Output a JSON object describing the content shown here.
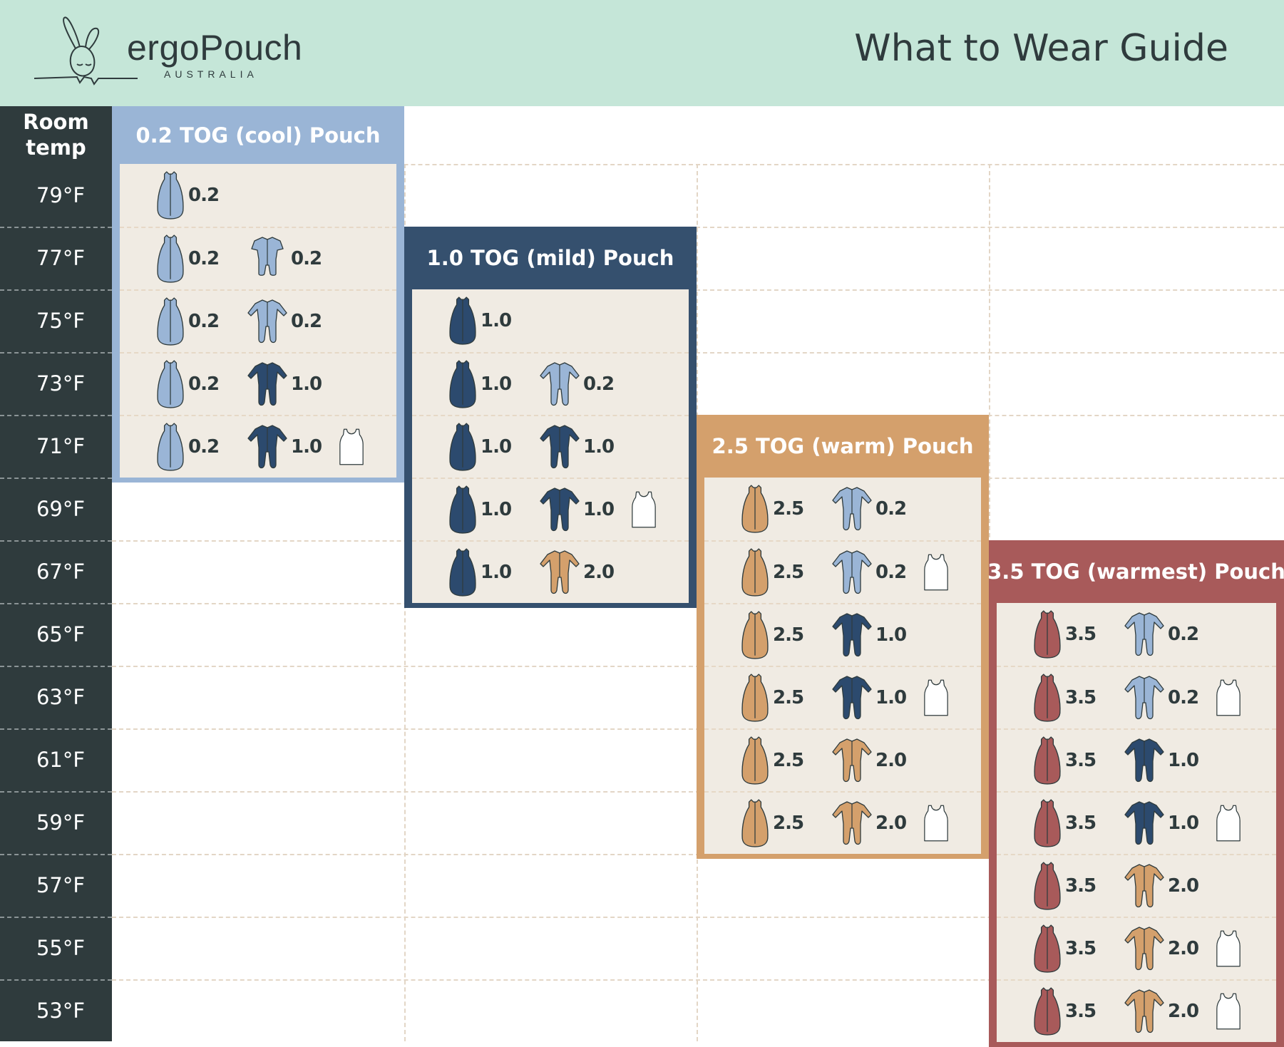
{
  "header": {
    "logo_name": "ergoPouch",
    "logo_sub": "AUSTRALIA",
    "title": "What to Wear Guide"
  },
  "colors": {
    "header_bg": "#c5e6d8",
    "left_col": "#2f3b3d",
    "content_bg": "#f0ebe3",
    "tog_0_2": "#9ab5d6",
    "tog_1_0": "#2c4a6e",
    "tog_2_0": "#d4a06c",
    "tog_2_5": "#d4a06c",
    "tog_3_5": "#a85a5a",
    "singlet": "#ffffff"
  },
  "room_temp_label": "Room temp",
  "temps": [
    "79°F",
    "77°F",
    "75°F",
    "73°F",
    "71°F",
    "69°F",
    "67°F",
    "65°F",
    "63°F",
    "61°F",
    "59°F",
    "57°F",
    "55°F",
    "53°F"
  ],
  "boxes": [
    {
      "title": "0.2 TOG (cool) Pouch",
      "color": "#9ab5d6",
      "rows": [
        {
          "temp": "79°F",
          "items": [
            {
              "icon": "pouch",
              "tog": "0.2"
            }
          ]
        },
        {
          "temp": "77°F",
          "items": [
            {
              "icon": "pouch",
              "tog": "0.2"
            },
            {
              "icon": "short-suit",
              "tog": "0.2"
            }
          ]
        },
        {
          "temp": "75°F",
          "items": [
            {
              "icon": "pouch",
              "tog": "0.2"
            },
            {
              "icon": "suit",
              "tog": "0.2"
            }
          ]
        },
        {
          "temp": "73°F",
          "items": [
            {
              "icon": "pouch",
              "tog": "0.2"
            },
            {
              "icon": "suit",
              "tog": "1.0"
            }
          ]
        },
        {
          "temp": "71°F",
          "items": [
            {
              "icon": "pouch",
              "tog": "0.2"
            },
            {
              "icon": "suit",
              "tog": "1.0"
            },
            {
              "icon": "singlet",
              "tog": ""
            }
          ]
        }
      ]
    },
    {
      "title": "1.0 TOG (mild) Pouch",
      "color": "#35506e",
      "rows": [
        {
          "temp": "75°F",
          "items": [
            {
              "icon": "pouch",
              "tog": "1.0"
            }
          ]
        },
        {
          "temp": "73°F",
          "items": [
            {
              "icon": "pouch",
              "tog": "1.0"
            },
            {
              "icon": "suit",
              "tog": "0.2"
            }
          ]
        },
        {
          "temp": "71°F",
          "items": [
            {
              "icon": "pouch",
              "tog": "1.0"
            },
            {
              "icon": "suit",
              "tog": "1.0"
            }
          ]
        },
        {
          "temp": "69°F",
          "items": [
            {
              "icon": "pouch",
              "tog": "1.0"
            },
            {
              "icon": "suit",
              "tog": "1.0"
            },
            {
              "icon": "singlet",
              "tog": ""
            }
          ]
        },
        {
          "temp": "67°F",
          "items": [
            {
              "icon": "pouch",
              "tog": "1.0"
            },
            {
              "icon": "suit",
              "tog": "2.0"
            }
          ]
        }
      ]
    },
    {
      "title": "2.5 TOG (warm) Pouch",
      "color": "#d4a06c",
      "rows": [
        {
          "temp": "69°F",
          "items": [
            {
              "icon": "pouch",
              "tog": "2.5"
            },
            {
              "icon": "suit",
              "tog": "0.2"
            }
          ]
        },
        {
          "temp": "67°F",
          "items": [
            {
              "icon": "pouch",
              "tog": "2.5"
            },
            {
              "icon": "suit",
              "tog": "0.2"
            },
            {
              "icon": "singlet",
              "tog": ""
            }
          ]
        },
        {
          "temp": "65°F",
          "items": [
            {
              "icon": "pouch",
              "tog": "2.5"
            },
            {
              "icon": "suit",
              "tog": "1.0"
            }
          ]
        },
        {
          "temp": "63°F",
          "items": [
            {
              "icon": "pouch",
              "tog": "2.5"
            },
            {
              "icon": "suit",
              "tog": "1.0"
            },
            {
              "icon": "singlet",
              "tog": ""
            }
          ]
        },
        {
          "temp": "61°F",
          "items": [
            {
              "icon": "pouch",
              "tog": "2.5"
            },
            {
              "icon": "suit",
              "tog": "2.0"
            }
          ]
        },
        {
          "temp": "59°F",
          "items": [
            {
              "icon": "pouch",
              "tog": "2.5"
            },
            {
              "icon": "suit",
              "tog": "2.0"
            },
            {
              "icon": "singlet",
              "tog": ""
            }
          ]
        }
      ]
    },
    {
      "title": "3.5 TOG (warmest) Pouch",
      "color": "#a85a5a",
      "rows": [
        {
          "temp": "65°F",
          "items": [
            {
              "icon": "pouch",
              "tog": "3.5"
            },
            {
              "icon": "suit",
              "tog": "0.2"
            }
          ]
        },
        {
          "temp": "63°F",
          "items": [
            {
              "icon": "pouch",
              "tog": "3.5"
            },
            {
              "icon": "suit",
              "tog": "0.2"
            },
            {
              "icon": "singlet",
              "tog": ""
            }
          ]
        },
        {
          "temp": "61°F",
          "items": [
            {
              "icon": "pouch",
              "tog": "3.5"
            },
            {
              "icon": "suit",
              "tog": "1.0"
            }
          ]
        },
        {
          "temp": "59°F",
          "items": [
            {
              "icon": "pouch",
              "tog": "3.5"
            },
            {
              "icon": "suit",
              "tog": "1.0"
            },
            {
              "icon": "singlet",
              "tog": ""
            }
          ]
        },
        {
          "temp": "57°F",
          "items": [
            {
              "icon": "pouch",
              "tog": "3.5"
            },
            {
              "icon": "suit",
              "tog": "2.0"
            }
          ]
        },
        {
          "temp": "55°F",
          "items": [
            {
              "icon": "pouch",
              "tog": "3.5"
            },
            {
              "icon": "suit",
              "tog": "2.0"
            },
            {
              "icon": "singlet",
              "tog": ""
            }
          ]
        },
        {
          "temp": "53°F",
          "items": [
            {
              "icon": "pouch",
              "tog": "3.5"
            },
            {
              "icon": "suit",
              "tog": "2.0"
            },
            {
              "icon": "singlet",
              "tog": ""
            }
          ]
        }
      ]
    }
  ]
}
